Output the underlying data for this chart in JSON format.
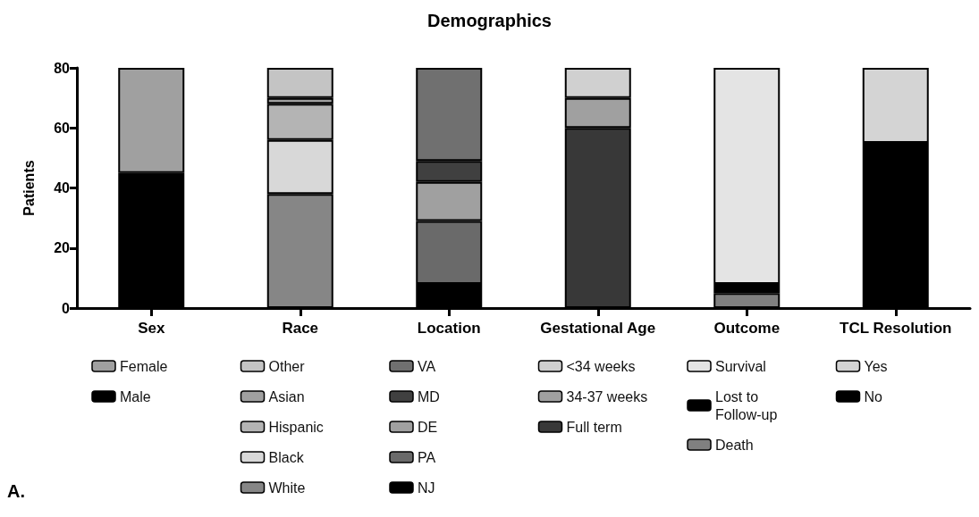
{
  "chart_data": {
    "type": "bar",
    "title": "Demographics",
    "ylabel": "Patients",
    "stacked": true,
    "legend": "bottom",
    "grid": false,
    "categories": [
      "Sex",
      "Race",
      "Location",
      "Gestational Age",
      "Outcome",
      "TCL Resolution"
    ],
    "ylim": [
      0,
      80
    ],
    "yticks": [
      0,
      20,
      40,
      60,
      80
    ],
    "annotations": [
      "A."
    ],
    "series": [
      {
        "name": "Male",
        "color": "#000000",
        "values": [
          45,
          null,
          null,
          null,
          null,
          null
        ]
      },
      {
        "name": "Female",
        "color": "#a0a0a0",
        "values": [
          35,
          null,
          null,
          null,
          null,
          null
        ]
      },
      {
        "name": "White",
        "color": "#868686",
        "values": [
          null,
          38,
          null,
          null,
          null,
          null
        ]
      },
      {
        "name": "Black",
        "color": "#d8d8d8",
        "values": [
          null,
          18,
          null,
          null,
          null,
          null
        ]
      },
      {
        "name": "Hispanic",
        "color": "#b4b4b4",
        "values": [
          null,
          12,
          null,
          null,
          null,
          null
        ]
      },
      {
        "name": "Asian",
        "color": "#a0a0a0",
        "values": [
          null,
          2,
          null,
          null,
          null,
          null
        ]
      },
      {
        "name": "Other",
        "color": "#c4c4c4",
        "values": [
          null,
          10,
          null,
          null,
          null,
          null
        ]
      },
      {
        "name": "NJ",
        "color": "#000000",
        "values": [
          null,
          null,
          8,
          null,
          null,
          null
        ]
      },
      {
        "name": "PA",
        "color": "#6a6a6a",
        "values": [
          null,
          null,
          21,
          null,
          null,
          null
        ]
      },
      {
        "name": "DE",
        "color": "#a0a0a0",
        "values": [
          null,
          null,
          13,
          null,
          null,
          null
        ]
      },
      {
        "name": "MD",
        "color": "#404040",
        "values": [
          null,
          null,
          7,
          null,
          null,
          null
        ]
      },
      {
        "name": "VA",
        "color": "#707070",
        "values": [
          null,
          null,
          31,
          null,
          null,
          null
        ]
      },
      {
        "name": "Full term",
        "color": "#383838",
        "values": [
          null,
          null,
          null,
          60,
          null,
          null
        ]
      },
      {
        "name": "34-37 weeks",
        "color": "#a0a0a0",
        "values": [
          null,
          null,
          null,
          10,
          null,
          null
        ]
      },
      {
        "name": "<34 weeks",
        "color": "#d0d0d0",
        "values": [
          null,
          null,
          null,
          10,
          null,
          null
        ]
      },
      {
        "name": "Death",
        "color": "#808080",
        "values": [
          null,
          null,
          null,
          null,
          5,
          null
        ]
      },
      {
        "name": "Lost to Follow-up",
        "color": "#000000",
        "values": [
          null,
          null,
          null,
          null,
          3,
          null
        ]
      },
      {
        "name": "Survival",
        "color": "#e4e4e4",
        "values": [
          null,
          null,
          null,
          null,
          72,
          null
        ]
      },
      {
        "name": "No",
        "color": "#000000",
        "values": [
          null,
          null,
          null,
          null,
          null,
          55
        ]
      },
      {
        "name": "Yes",
        "color": "#d4d4d4",
        "values": [
          null,
          null,
          null,
          null,
          null,
          25
        ]
      }
    ]
  }
}
